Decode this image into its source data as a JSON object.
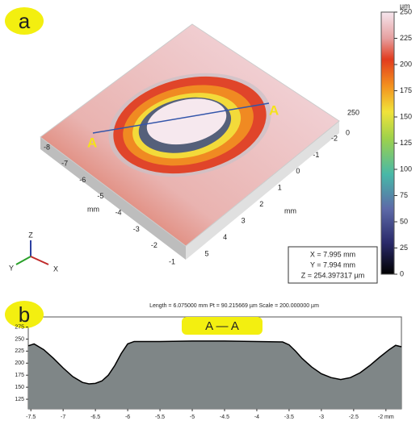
{
  "panel_a": {
    "label": "a",
    "section_labels": [
      "A",
      "A"
    ],
    "left_axis": {
      "unit": "mm",
      "ticks": [
        "-8",
        "-7",
        "-6",
        "-5",
        "-4",
        "-3",
        "-2",
        "-1"
      ]
    },
    "right_axis": {
      "unit": "mm",
      "ticks": [
        "5",
        "4",
        "3",
        "2",
        "1",
        "0",
        "-1",
        "-2"
      ]
    },
    "z_axis": {
      "ticks": [
        "250",
        "0"
      ]
    },
    "triad": [
      "Z",
      "Y",
      "X"
    ],
    "info": [
      "X = 7.995 mm",
      "Y = 7.994 mm",
      "Z = 254.397317 µm"
    ]
  },
  "panel_b": {
    "label": "b"
  },
  "chart_data": [
    {
      "type": "colorbar",
      "unit": "µm",
      "ylim": [
        0,
        250
      ],
      "yticks": [
        0,
        25,
        50,
        75,
        100,
        125,
        150,
        175,
        200,
        225,
        250
      ]
    },
    {
      "type": "area",
      "title": "Length = 6.075000 mm  Pt = 90.215669 µm  Scale = 200.000000 µm",
      "legend": "A — A",
      "color": "#7f8687",
      "x": [
        -7.54,
        -7.45,
        -7.3,
        -7.15,
        -7.0,
        -6.85,
        -6.7,
        -6.6,
        -6.5,
        -6.4,
        -6.3,
        -6.2,
        -6.1,
        -6.0,
        -5.9,
        -5.5,
        -5.0,
        -4.5,
        -4.0,
        -3.6,
        -3.5,
        -3.4,
        -3.3,
        -3.15,
        -3.0,
        -2.85,
        -2.7,
        -2.55,
        -2.4,
        -2.25,
        -2.1,
        -1.95,
        -1.85,
        -1.76
      ],
      "values": [
        236,
        240,
        228,
        210,
        190,
        172,
        160,
        157,
        158,
        163,
        175,
        195,
        220,
        240,
        245,
        245,
        246,
        246,
        245,
        244,
        238,
        225,
        210,
        192,
        178,
        170,
        166,
        170,
        180,
        195,
        212,
        228,
        237,
        234
      ],
      "xlim": [
        -7.54,
        -1.76
      ],
      "ylim": [
        105,
        296
      ],
      "xticks": [
        -7.5,
        -7,
        -6.5,
        -6,
        -5.5,
        -5,
        -4.5,
        -4,
        -3.5,
        -3,
        -2.5,
        {
          "value": -2,
          "label": "-2 mm"
        }
      ],
      "yticks": [
        125,
        150,
        175,
        200,
        225,
        250,
        275
      ]
    }
  ]
}
